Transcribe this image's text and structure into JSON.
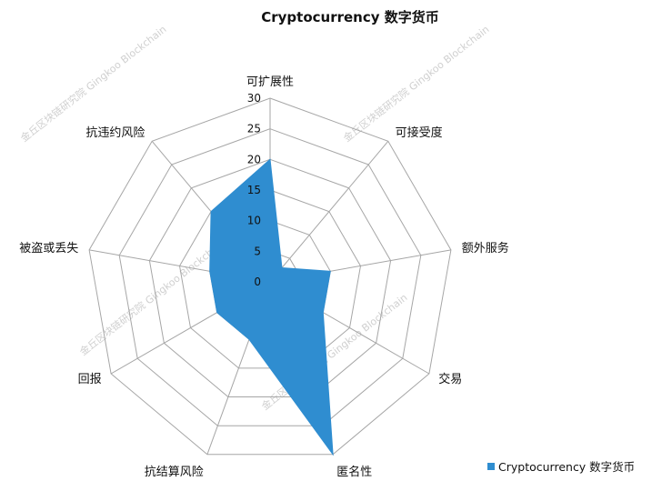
{
  "chart_data": {
    "type": "radar",
    "title": "Cryptocurrency 数字货币",
    "axes": [
      "可扩展性",
      "可接受度",
      "额外服务",
      "交易",
      "匿名性",
      "抗结算风险",
      "回报",
      "被盗或丢失",
      "抗违约风险"
    ],
    "rmax": 30,
    "rticks": [
      "0",
      "5",
      "10",
      "15",
      "20",
      "25",
      "30"
    ],
    "rtick_values": [
      0,
      5,
      10,
      15,
      20,
      25,
      30
    ],
    "series": [
      {
        "name": "Cryptocurrency 数字货币",
        "values": [
          20,
          3,
          10,
          10,
          30,
          10,
          10,
          10,
          15
        ],
        "color": "#2f8dd0"
      }
    ],
    "legend_position": "bottom-right",
    "grid": true,
    "colors": {
      "grid": "#a6a6a6",
      "fill": "#2f8dd0"
    }
  },
  "watermark": {
    "text": "金丘区块链研究院 Gingkoo Blockchain"
  }
}
